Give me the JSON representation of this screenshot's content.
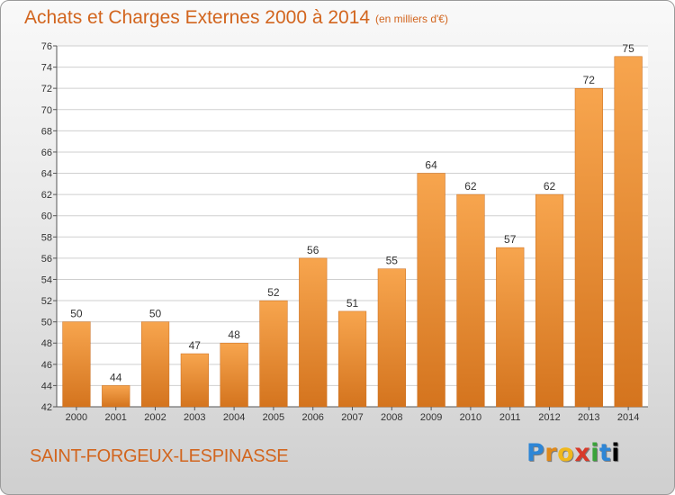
{
  "header": {
    "title": "Achats et Charges Externes 2000 à 2014",
    "subtitle": "(en milliers d'€)"
  },
  "footer": {
    "commune": "SAINT-FORGEUX-LESPINASSE",
    "logo_letters": [
      "P",
      "r",
      "o",
      "x",
      "i",
      "t",
      "i"
    ]
  },
  "colors": {
    "bar_light": "#f7a54e",
    "bar_dark": "#d4741e",
    "text_accent": "#d2651e"
  },
  "chart_data": {
    "type": "bar",
    "title": "Achats et Charges Externes 2000 à 2014",
    "subtitle": "(en milliers d'€)",
    "categories": [
      "2000",
      "2001",
      "2002",
      "2003",
      "2004",
      "2005",
      "2006",
      "2007",
      "2008",
      "2009",
      "2010",
      "2011",
      "2012",
      "2013",
      "2014"
    ],
    "values": [
      50,
      44,
      50,
      47,
      48,
      52,
      56,
      51,
      55,
      64,
      62,
      57,
      62,
      72,
      75
    ],
    "ylim": [
      42,
      76
    ],
    "yticks": [
      42,
      44,
      46,
      48,
      50,
      52,
      54,
      56,
      58,
      60,
      62,
      64,
      66,
      68,
      70,
      72,
      74,
      76
    ],
    "grid": true,
    "legend": "none"
  }
}
